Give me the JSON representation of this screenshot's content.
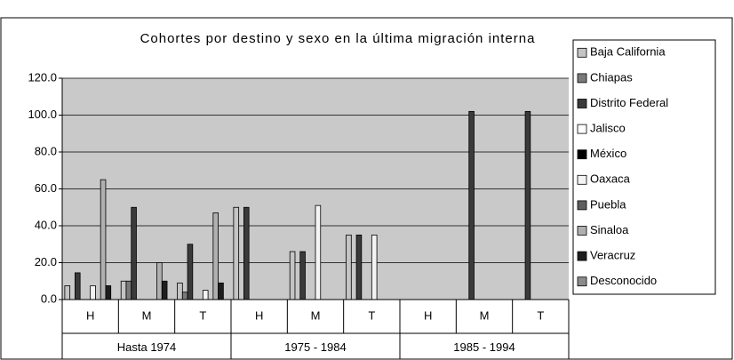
{
  "chart_data": {
    "type": "bar",
    "title": "Cohortes por destino y sexo en la última migración interna",
    "categories": [
      "H",
      "M",
      "T",
      "H",
      "M",
      "T",
      "H",
      "M",
      "T"
    ],
    "groups": [
      "Hasta 1974",
      "1975 - 1984",
      "1985 - 1994"
    ],
    "series": [
      {
        "name": "Baja California",
        "color": "#c4c4c4",
        "values": [
          7.5,
          10,
          9,
          50,
          26,
          35,
          0,
          0,
          0
        ]
      },
      {
        "name": "Chiapas",
        "color": "#7a7a7a",
        "values": [
          0,
          10,
          4,
          0,
          0,
          0,
          0,
          0,
          0
        ]
      },
      {
        "name": "Distrito Federal",
        "color": "#3a3a3a",
        "values": [
          14.5,
          50,
          30,
          50,
          26,
          35,
          0,
          102,
          102
        ]
      },
      {
        "name": "Jalisco",
        "color": "#ffffff",
        "values": [
          0,
          0,
          0,
          0,
          0,
          0,
          0,
          0,
          0
        ]
      },
      {
        "name": "México",
        "color": "#000000",
        "values": [
          0,
          0,
          0,
          0,
          0,
          0,
          0,
          0,
          0
        ]
      },
      {
        "name": "Oaxaca",
        "color": "#f4f4f4",
        "values": [
          7.5,
          0,
          5,
          0,
          51,
          35,
          0,
          0,
          0
        ]
      },
      {
        "name": "Puebla",
        "color": "#5e5e5e",
        "values": [
          0,
          0,
          0,
          0,
          0,
          0,
          0,
          0,
          0
        ]
      },
      {
        "name": "Sinaloa",
        "color": "#b0b0b0",
        "values": [
          65,
          20,
          47,
          0,
          0,
          0,
          0,
          0,
          0
        ]
      },
      {
        "name": "Veracruz",
        "color": "#1e1e1e",
        "values": [
          7.5,
          10,
          9,
          0,
          0,
          0,
          0,
          0,
          0
        ]
      },
      {
        "name": "Desconocido",
        "color": "#8c8c8c",
        "values": [
          0,
          0,
          0,
          0,
          0,
          0,
          0,
          0,
          0
        ]
      }
    ],
    "ylim": [
      0,
      120
    ],
    "yticks": [
      {
        "value": 0,
        "label": "0.0"
      },
      {
        "value": 20,
        "label": "20.0"
      },
      {
        "value": 40,
        "label": "40.0"
      },
      {
        "value": 60,
        "label": "60.0"
      },
      {
        "value": 80,
        "label": "80.0"
      },
      {
        "value": 100,
        "label": "100.0"
      },
      {
        "value": 120,
        "label": "120.0"
      }
    ],
    "grid": true,
    "legend": "right"
  }
}
